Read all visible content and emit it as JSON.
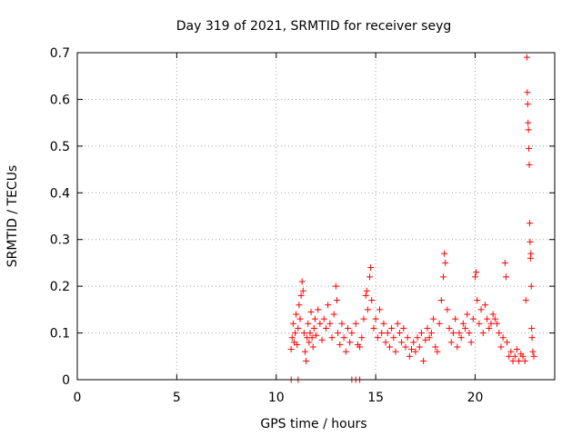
{
  "chart_data": {
    "type": "scatter",
    "title": "Day 319 of 2021, SRMTID for receiver seyg",
    "xlabel": "GPS time / hours",
    "ylabel": "SRMTID / TECUs",
    "xlim": [
      0,
      24
    ],
    "ylim": [
      0,
      0.7
    ],
    "xticks": [
      0,
      5,
      10,
      15,
      20
    ],
    "xtick_labels": [
      "0",
      "5",
      "10",
      "15",
      "20"
    ],
    "yticks": [
      0,
      0.1,
      0.2,
      0.3,
      0.4,
      0.5,
      0.6,
      0.7
    ],
    "ytick_labels": [
      "0",
      "0.1",
      "0.2",
      "0.3",
      "0.4",
      "0.5",
      "0.6",
      "0.7"
    ],
    "grid": true,
    "marker": "plus",
    "color": "#ff0000",
    "series": [
      {
        "name": "SRMTID",
        "points": [
          [
            10.75,
            0.065
          ],
          [
            10.8,
            0.09
          ],
          [
            10.85,
            0.12
          ],
          [
            10.9,
            0.08
          ],
          [
            10.95,
            0.1
          ],
          [
            11.0,
            0.14
          ],
          [
            11.05,
            0.075
          ],
          [
            11.1,
            0.11
          ],
          [
            11.15,
            0.16
          ],
          [
            11.2,
            0.13
          ],
          [
            11.25,
            0.18
          ],
          [
            11.3,
            0.21
          ],
          [
            11.35,
            0.19
          ],
          [
            11.4,
            0.1
          ],
          [
            11.45,
            0.06
          ],
          [
            11.5,
            0.04
          ],
          [
            11.55,
            0.09
          ],
          [
            11.6,
            0.12
          ],
          [
            11.65,
            0.08
          ],
          [
            11.7,
            0.1
          ],
          [
            11.75,
            0.145
          ],
          [
            11.8,
            0.09
          ],
          [
            11.85,
            0.07
          ],
          [
            11.9,
            0.11
          ],
          [
            11.95,
            0.13
          ],
          [
            12.0,
            0.095
          ],
          [
            12.1,
            0.15
          ],
          [
            12.2,
            0.12
          ],
          [
            12.3,
            0.085
          ],
          [
            12.4,
            0.13
          ],
          [
            12.5,
            0.11
          ],
          [
            12.6,
            0.16
          ],
          [
            12.7,
            0.12
          ],
          [
            12.8,
            0.09
          ],
          [
            12.9,
            0.14
          ],
          [
            13.0,
            0.2
          ],
          [
            13.05,
            0.17
          ],
          [
            13.1,
            0.1
          ],
          [
            13.2,
            0.075
          ],
          [
            13.3,
            0.12
          ],
          [
            13.4,
            0.09
          ],
          [
            13.5,
            0.06
          ],
          [
            13.6,
            0.11
          ],
          [
            13.7,
            0.08
          ],
          [
            13.8,
            0.1
          ],
          [
            14.0,
            0.12
          ],
          [
            14.1,
            0.075
          ],
          [
            14.2,
            0.07
          ],
          [
            14.3,
            0.09
          ],
          [
            14.4,
            0.13
          ],
          [
            14.5,
            0.18
          ],
          [
            14.55,
            0.19
          ],
          [
            14.6,
            0.15
          ],
          [
            14.7,
            0.22
          ],
          [
            14.75,
            0.24
          ],
          [
            14.8,
            0.17
          ],
          [
            14.9,
            0.11
          ],
          [
            15.0,
            0.13
          ],
          [
            15.1,
            0.09
          ],
          [
            15.2,
            0.15
          ],
          [
            15.3,
            0.1
          ],
          [
            15.4,
            0.12
          ],
          [
            15.5,
            0.08
          ],
          [
            15.6,
            0.1
          ],
          [
            15.7,
            0.07
          ],
          [
            15.8,
            0.11
          ],
          [
            15.9,
            0.09
          ],
          [
            16.0,
            0.06
          ],
          [
            16.1,
            0.12
          ],
          [
            16.2,
            0.1
          ],
          [
            16.3,
            0.08
          ],
          [
            16.4,
            0.11
          ],
          [
            16.5,
            0.07
          ],
          [
            16.6,
            0.09
          ],
          [
            16.7,
            0.05
          ],
          [
            16.8,
            0.065
          ],
          [
            16.9,
            0.08
          ],
          [
            17.0,
            0.06
          ],
          [
            17.1,
            0.09
          ],
          [
            17.2,
            0.07
          ],
          [
            17.3,
            0.1
          ],
          [
            17.4,
            0.04
          ],
          [
            17.5,
            0.085
          ],
          [
            17.6,
            0.11
          ],
          [
            17.7,
            0.09
          ],
          [
            17.8,
            0.1
          ],
          [
            17.9,
            0.13
          ],
          [
            18.0,
            0.07
          ],
          [
            18.1,
            0.06
          ],
          [
            18.2,
            0.12
          ],
          [
            18.3,
            0.17
          ],
          [
            18.4,
            0.22
          ],
          [
            18.45,
            0.27
          ],
          [
            18.5,
            0.25
          ],
          [
            18.6,
            0.15
          ],
          [
            18.7,
            0.11
          ],
          [
            18.8,
            0.08
          ],
          [
            18.9,
            0.1
          ],
          [
            19.0,
            0.13
          ],
          [
            19.1,
            0.07
          ],
          [
            19.2,
            0.1
          ],
          [
            19.3,
            0.09
          ],
          [
            19.4,
            0.12
          ],
          [
            19.5,
            0.11
          ],
          [
            19.6,
            0.14
          ],
          [
            19.7,
            0.1
          ],
          [
            19.8,
            0.08
          ],
          [
            19.9,
            0.13
          ],
          [
            20.0,
            0.22
          ],
          [
            20.05,
            0.23
          ],
          [
            20.1,
            0.17
          ],
          [
            20.2,
            0.12
          ],
          [
            20.3,
            0.15
          ],
          [
            20.4,
            0.1
          ],
          [
            20.5,
            0.16
          ],
          [
            20.6,
            0.13
          ],
          [
            20.7,
            0.11
          ],
          [
            20.8,
            0.12
          ],
          [
            20.9,
            0.14
          ],
          [
            21.0,
            0.13
          ],
          [
            21.1,
            0.12
          ],
          [
            21.2,
            0.1
          ],
          [
            21.3,
            0.07
          ],
          [
            21.4,
            0.09
          ],
          [
            21.5,
            0.25
          ],
          [
            21.55,
            0.22
          ],
          [
            21.6,
            0.08
          ],
          [
            21.7,
            0.05
          ],
          [
            21.8,
            0.06
          ],
          [
            21.9,
            0.04
          ],
          [
            22.0,
            0.05
          ],
          [
            22.1,
            0.065
          ],
          [
            22.2,
            0.04
          ],
          [
            22.3,
            0.055
          ],
          [
            22.4,
            0.05
          ],
          [
            22.5,
            0.04
          ],
          [
            22.55,
            0.17
          ],
          [
            22.6,
            0.69
          ],
          [
            22.62,
            0.615
          ],
          [
            22.64,
            0.59
          ],
          [
            22.66,
            0.55
          ],
          [
            22.68,
            0.535
          ],
          [
            22.7,
            0.495
          ],
          [
            22.72,
            0.46
          ],
          [
            22.74,
            0.335
          ],
          [
            22.76,
            0.295
          ],
          [
            22.78,
            0.26
          ],
          [
            22.8,
            0.27
          ],
          [
            22.82,
            0.2
          ],
          [
            22.84,
            0.11
          ],
          [
            22.86,
            0.09
          ],
          [
            22.9,
            0.06
          ],
          [
            22.95,
            0.05
          ]
        ]
      },
      {
        "name": "zero-level markers",
        "points": [
          [
            10.75,
            0
          ],
          [
            11.1,
            0
          ],
          [
            13.8,
            0
          ],
          [
            14.0,
            0
          ],
          [
            14.2,
            0
          ]
        ]
      }
    ]
  }
}
